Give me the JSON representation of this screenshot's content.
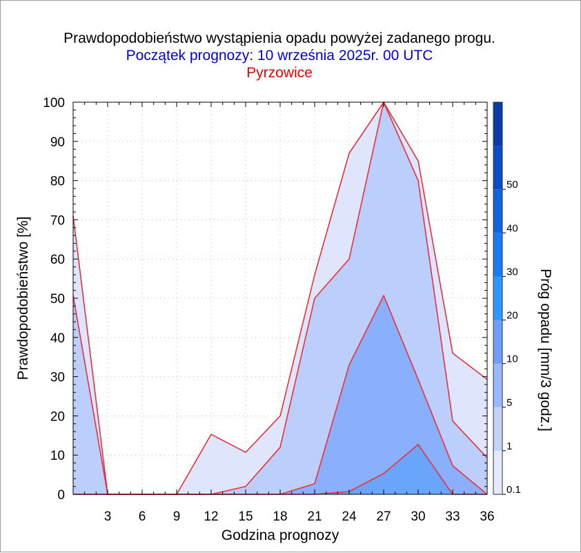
{
  "colors": {
    "title": "#000000",
    "subtitle": "#0000dd",
    "station": "#ee0000",
    "outline": "#e8303a",
    "background": "#ffffff"
  },
  "chart_data": {
    "type": "area",
    "title": "Prawdopodobieństwo wystąpienia opadu powyżej zadanego progu.",
    "subtitle": "Początek prognozy: 10 września 2025r. 00 UTC",
    "station": "Pyrzowice",
    "xlabel": "Godzina prognozy",
    "ylabel": "Prawdopodobieństwo [%]",
    "colorbar_label": "Próg opadu [mm/3 godz.]",
    "xlim": [
      0,
      36
    ],
    "ylim": [
      0,
      100
    ],
    "x": [
      0,
      3,
      6,
      9,
      12,
      15,
      18,
      21,
      24,
      27,
      30,
      33,
      36
    ],
    "xticks": [
      3,
      6,
      9,
      12,
      15,
      18,
      21,
      24,
      27,
      30,
      33,
      36
    ],
    "yticks": [
      0,
      10,
      20,
      30,
      40,
      50,
      60,
      70,
      80,
      90,
      100
    ],
    "grid": true,
    "series": [
      {
        "threshold": 0.1,
        "color": "#dfe5fd",
        "values": [
          71,
          0,
          0,
          0,
          15.3,
          10.7,
          20,
          56,
          87,
          100,
          85,
          36,
          29.3
        ]
      },
      {
        "threshold": 1,
        "color": "#bccefb",
        "values": [
          50.7,
          0,
          0,
          0,
          0,
          2,
          12,
          50,
          60,
          100,
          80,
          18.7,
          9.3
        ]
      },
      {
        "threshold": 5,
        "color": "#8aaffc",
        "values": [
          0,
          0,
          0,
          0,
          0,
          0,
          0,
          2.7,
          33,
          50.7,
          29.3,
          7.3,
          0
        ]
      },
      {
        "threshold": 10,
        "color": "#6aa5fc",
        "values": [
          0,
          0,
          0,
          0,
          0,
          0,
          0,
          0,
          0.7,
          5.3,
          12.7,
          0,
          0
        ]
      }
    ],
    "colorbar": {
      "tick_values": [
        0.1,
        1,
        5,
        10,
        20,
        30,
        40,
        50
      ],
      "tick_labels": [
        "0.1",
        "1",
        "5",
        "10",
        "20",
        "30",
        "40",
        "50"
      ],
      "segments": [
        {
          "from": 0.1,
          "to": 1,
          "color": "#e6eafd"
        },
        {
          "from": 1,
          "to": 5,
          "color": "#c2d2fb"
        },
        {
          "from": 5,
          "to": 10,
          "color": "#9ab9fc"
        },
        {
          "from": 10,
          "to": 20,
          "color": "#6f9efc"
        },
        {
          "from": 20,
          "to": 30,
          "color": "#2c98ff"
        },
        {
          "from": 30,
          "to": 40,
          "color": "#1a7af2"
        },
        {
          "from": 40,
          "to": 50,
          "color": "#1262dc"
        },
        {
          "from": 50,
          "to": 60,
          "color": "#0b4bc4"
        },
        {
          "from": 60,
          "to": 70,
          "color": "#0a3ba6"
        }
      ]
    }
  }
}
